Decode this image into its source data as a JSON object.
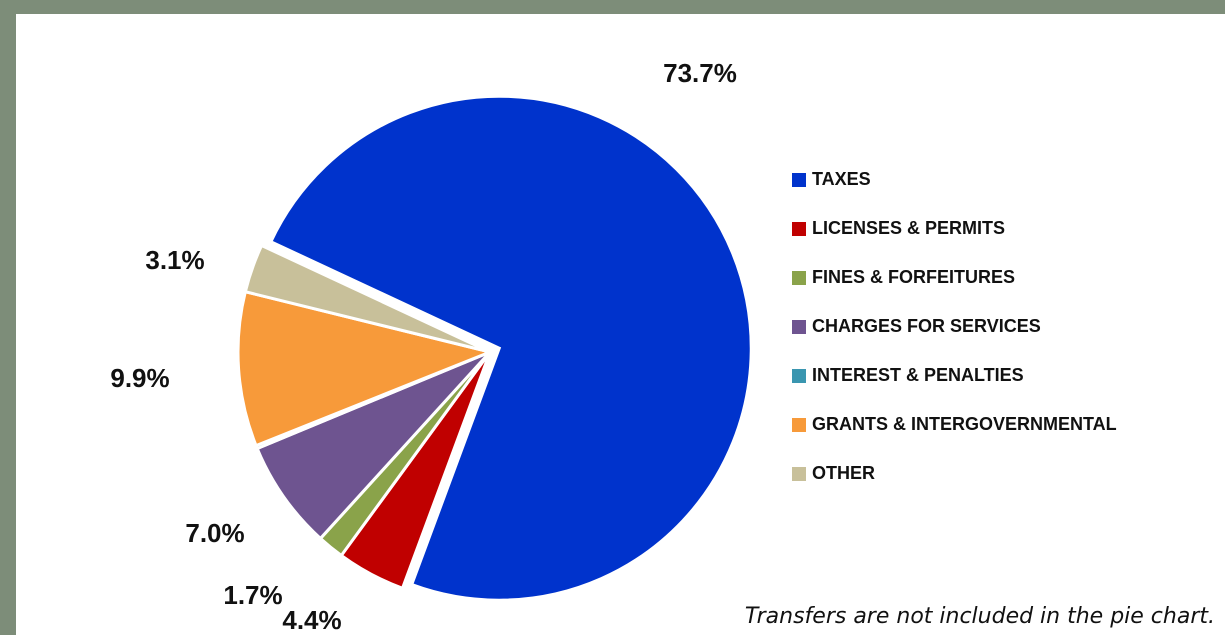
{
  "chart_data": {
    "type": "pie",
    "categories": [
      "TAXES",
      "LICENSES & PERMITS",
      "FINES & FORFEITURES",
      "CHARGES FOR SERVICES",
      "INTEREST & PENALTIES",
      "GRANTS & INTERGOVERNMENTAL",
      "OTHER"
    ],
    "values": [
      73.7,
      4.4,
      1.7,
      7.0,
      0.2,
      9.9,
      3.1
    ],
    "value_labels": [
      "73.7%",
      "4.4%",
      "1.7%",
      "7.0%",
      null,
      "9.9%",
      "3.1%"
    ],
    "colors": [
      "#0033cc",
      "#c00000",
      "#8aa34a",
      "#6e5490",
      "#3a96b0",
      "#f79a3a",
      "#c8c09a"
    ],
    "legend": "right",
    "note": "Transfers are not included in the pie chart."
  }
}
